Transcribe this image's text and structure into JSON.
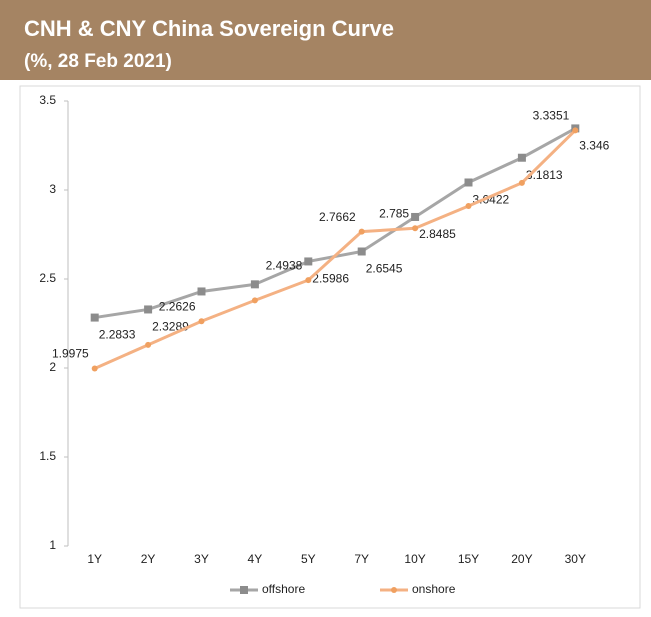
{
  "chart_data": {
    "type": "line",
    "title": "CNH & CNY China Sovereign Curve",
    "subtitle": "(%, 28 Feb 2021)",
    "categories": [
      "1Y",
      "2Y",
      "3Y",
      "4Y",
      "5Y",
      "7Y",
      "10Y",
      "15Y",
      "20Y",
      "30Y"
    ],
    "series": [
      {
        "name": "offshore",
        "color": "#a6a6a6",
        "values": [
          2.2833,
          2.3289,
          2.43,
          2.47,
          2.5986,
          2.6545,
          2.8485,
          3.0422,
          3.1813,
          3.346
        ],
        "value_labels": [
          "2.2833",
          "2.3289",
          null,
          null,
          "2.5986",
          "2.6545",
          "2.8485",
          "3.0422",
          "3.1813",
          "3.346"
        ]
      },
      {
        "name": "onshore",
        "color": "#f4b183",
        "values": [
          1.9975,
          2.13,
          2.2626,
          2.38,
          2.4938,
          2.7662,
          2.785,
          2.91,
          3.04,
          3.3351
        ],
        "value_labels": [
          "1.9975",
          null,
          "2.2626",
          null,
          "2.4938",
          "2.7662",
          "2.785",
          null,
          null,
          "3.3351"
        ]
      }
    ],
    "ylim": [
      1,
      3.5
    ],
    "yticks": [
      1,
      1.5,
      2,
      2.5,
      3,
      3.5
    ],
    "legend": "bottom"
  }
}
